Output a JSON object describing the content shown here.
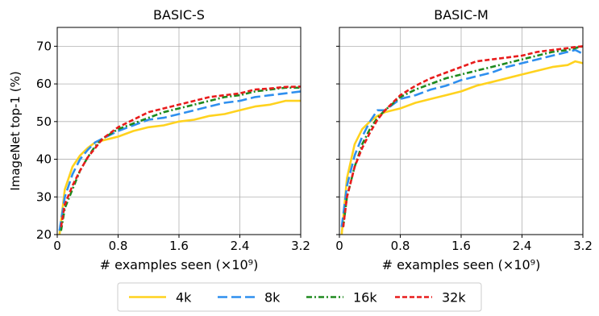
{
  "chart_data": {
    "type": "line",
    "ylabel": "ImageNet top-1 (%)",
    "xlabel": "# examples seen (×10⁹)",
    "xlim": [
      0,
      3.2
    ],
    "ylim": [
      20,
      75
    ],
    "xticks": [
      "0",
      "0.8",
      "1.6",
      "2.4",
      "3.2"
    ],
    "yticks": [
      "20",
      "30",
      "40",
      "50",
      "60",
      "70"
    ],
    "grid": true,
    "legend_position": "bottom-center",
    "legend": [
      {
        "name": "4k",
        "color": "#FFD21E",
        "dash": "solid"
      },
      {
        "name": "8k",
        "color": "#2E8FEF",
        "dash": "long-dash"
      },
      {
        "name": "16k",
        "color": "#1E8A1E",
        "dash": "dash-dot"
      },
      {
        "name": "32k",
        "color": "#E81C1C",
        "dash": "dashed"
      }
    ],
    "panels": [
      {
        "title": "BASIC-S",
        "series": [
          {
            "name": "4k",
            "x": [
              0.03,
              0.1,
              0.2,
              0.3,
              0.4,
              0.5,
              0.6,
              0.8,
              1.0,
              1.2,
              1.4,
              1.6,
              1.8,
              2.0,
              2.2,
              2.4,
              2.6,
              2.8,
              3.0,
              3.2
            ],
            "y": [
              20,
              32,
              38,
              41,
              43,
              44.5,
              45,
              46,
              47.5,
              48.5,
              49,
              50,
              50.5,
              51.5,
              52,
              53,
              54,
              54.5,
              55.5,
              55.5
            ]
          },
          {
            "name": "8k",
            "x": [
              0.03,
              0.1,
              0.2,
              0.3,
              0.4,
              0.5,
              0.6,
              0.8,
              1.0,
              1.2,
              1.4,
              1.6,
              1.8,
              2.0,
              2.2,
              2.4,
              2.6,
              2.8,
              3.0,
              3.2
            ],
            "y": [
              21,
              30,
              36,
              40,
              42.5,
              44.5,
              45.5,
              47.5,
              49,
              50.5,
              51,
              52,
              53,
              54,
              55,
              55.5,
              56.5,
              57,
              57.5,
              58
            ]
          },
          {
            "name": "16k",
            "x": [
              0.05,
              0.1,
              0.2,
              0.3,
              0.4,
              0.5,
              0.6,
              0.8,
              1.0,
              1.2,
              1.4,
              1.6,
              1.8,
              2.0,
              2.2,
              2.4,
              2.6,
              2.8,
              3.0,
              3.2
            ],
            "y": [
              21,
              27,
              32,
              37,
              40.5,
              43.5,
              45.5,
              48,
              49.5,
              51,
              52.5,
              53.5,
              54.5,
              55.5,
              56.5,
              57,
              58,
              58.5,
              59,
              59
            ]
          },
          {
            "name": "32k",
            "x": [
              0.05,
              0.1,
              0.2,
              0.3,
              0.4,
              0.5,
              0.6,
              0.8,
              1.0,
              1.2,
              1.4,
              1.6,
              1.8,
              2.0,
              2.2,
              2.4,
              2.6,
              2.8,
              3.0,
              3.2
            ],
            "y": [
              22,
              28,
              33,
              37,
              40.5,
              43,
              45.5,
              48.5,
              50.5,
              52.5,
              53.5,
              54.5,
              55.5,
              56.5,
              57,
              57.5,
              58.5,
              58.8,
              59.2,
              59.3
            ]
          }
        ]
      },
      {
        "title": "BASIC-M",
        "series": [
          {
            "name": "4k",
            "x": [
              0.03,
              0.1,
              0.2,
              0.3,
              0.4,
              0.5,
              0.6,
              0.8,
              1.0,
              1.2,
              1.4,
              1.6,
              1.8,
              2.0,
              2.2,
              2.4,
              2.6,
              2.8,
              3.0,
              3.1,
              3.2
            ],
            "y": [
              20,
              35,
              44,
              48,
              50,
              51.5,
              52.5,
              53.5,
              55,
              56,
              57,
              58,
              59.5,
              60.5,
              61.5,
              62.5,
              63.5,
              64.5,
              65,
              66,
              65.5
            ]
          },
          {
            "name": "8k",
            "x": [
              0.03,
              0.1,
              0.2,
              0.3,
              0.4,
              0.5,
              0.6,
              0.8,
              1.0,
              1.2,
              1.4,
              1.6,
              1.8,
              2.0,
              2.2,
              2.4,
              2.6,
              2.8,
              3.0,
              3.1,
              3.2
            ],
            "y": [
              22,
              33,
              41,
              46,
              50,
              53,
              53,
              56,
              57,
              58.5,
              59.5,
              61,
              62,
              63,
              64.5,
              65.5,
              66.5,
              67.5,
              68.5,
              69,
              68
            ]
          },
          {
            "name": "16k",
            "x": [
              0.05,
              0.1,
              0.2,
              0.3,
              0.4,
              0.5,
              0.6,
              0.8,
              1.0,
              1.2,
              1.4,
              1.6,
              1.8,
              2.0,
              2.2,
              2.4,
              2.6,
              2.8,
              3.0,
              3.1,
              3.2
            ],
            "y": [
              22,
              30,
              38,
              44,
              48,
              51,
              53,
              56.5,
              58.5,
              60,
              61.5,
              62.5,
              63.5,
              64.5,
              65.5,
              66.5,
              67.5,
              68.5,
              69,
              69.5,
              70
            ]
          },
          {
            "name": "32k",
            "x": [
              0.05,
              0.1,
              0.2,
              0.3,
              0.4,
              0.5,
              0.6,
              0.8,
              1.0,
              1.2,
              1.4,
              1.6,
              1.8,
              2.0,
              2.2,
              2.4,
              2.6,
              2.8,
              3.0,
              3.1,
              3.2
            ],
            "y": [
              22,
              30,
              38,
              43,
              47,
              50.5,
              53,
              57,
              59.5,
              61.5,
              63,
              64.5,
              66,
              66.5,
              67,
              67.5,
              68.5,
              69,
              69.5,
              69.8,
              70
            ]
          }
        ]
      }
    ]
  }
}
